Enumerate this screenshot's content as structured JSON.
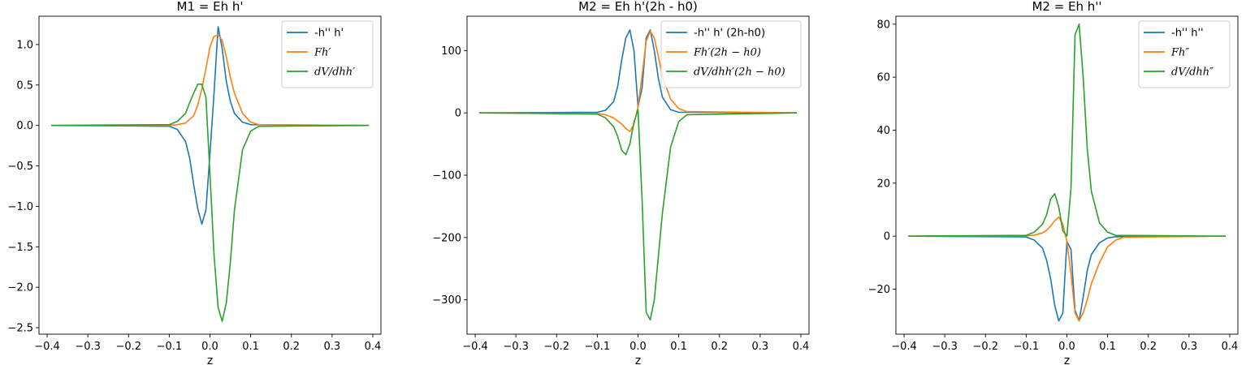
{
  "chart_data": [
    {
      "type": "line",
      "title": "M1 = Eh h'",
      "xlabel": "z",
      "ylabel": "",
      "xlim": [
        -0.42,
        0.42
      ],
      "ylim": [
        -2.58,
        1.35
      ],
      "xticks": [
        "-0.4",
        "-0.3",
        "-0.2",
        "-0.1",
        "0.0",
        "0.1",
        "0.2",
        "0.3",
        "0.4"
      ],
      "yticks": [
        "-2.5",
        "-2.0",
        "-1.5",
        "-1.0",
        "-0.5",
        "0.0",
        "0.5",
        "1.0"
      ],
      "legend_position": "upper-right",
      "series": [
        {
          "name": "-h'' h'",
          "italic": false,
          "color": "#1f77b4",
          "x": [
            -0.39,
            -0.1,
            -0.08,
            -0.06,
            -0.05,
            -0.04,
            -0.03,
            -0.02,
            -0.01,
            0.0,
            0.01,
            0.02,
            0.03,
            0.04,
            0.05,
            0.06,
            0.08,
            0.1,
            0.39
          ],
          "y": [
            0,
            -0.01,
            -0.05,
            -0.2,
            -0.4,
            -0.73,
            -1.03,
            -1.22,
            -1.05,
            -0.35,
            0.4,
            1.22,
            0.95,
            0.55,
            0.3,
            0.15,
            0.04,
            0.01,
            0
          ]
        },
        {
          "name": "Fh′",
          "italic": true,
          "color": "#ff7f0e",
          "x": [
            -0.39,
            -0.1,
            -0.08,
            -0.06,
            -0.04,
            -0.03,
            -0.02,
            -0.01,
            0.0,
            0.01,
            0.02,
            0.03,
            0.04,
            0.05,
            0.06,
            0.08,
            0.1,
            0.12,
            0.39
          ],
          "y": [
            0,
            0.0,
            0.01,
            0.03,
            0.12,
            0.25,
            0.45,
            0.7,
            0.97,
            1.1,
            1.12,
            1.05,
            0.85,
            0.6,
            0.4,
            0.15,
            0.04,
            0.01,
            0
          ]
        },
        {
          "name": "dV/dhh′",
          "italic": true,
          "color": "#2ca02c",
          "x": [
            -0.39,
            -0.1,
            -0.08,
            -0.06,
            -0.05,
            -0.04,
            -0.03,
            -0.02,
            -0.01,
            0.0,
            0.01,
            0.02,
            0.03,
            0.04,
            0.05,
            0.06,
            0.08,
            0.1,
            0.12,
            0.39
          ],
          "y": [
            0,
            0.01,
            0.05,
            0.15,
            0.28,
            0.4,
            0.51,
            0.51,
            0.35,
            -0.6,
            -1.6,
            -2.25,
            -2.42,
            -2.2,
            -1.7,
            -1.05,
            -0.3,
            -0.07,
            -0.01,
            0
          ]
        }
      ]
    },
    {
      "type": "line",
      "title": "M2 = Eh h'(2h - h0)",
      "xlabel": "z",
      "ylabel": "",
      "xlim": [
        -0.42,
        0.42
      ],
      "ylim": [
        -355,
        155
      ],
      "xticks": [
        "-0.4",
        "-0.3",
        "-0.2",
        "-0.1",
        "0.0",
        "0.1",
        "0.2",
        "0.3",
        "0.4"
      ],
      "yticks": [
        "-300",
        "-200",
        "-100",
        "0",
        "100"
      ],
      "legend_position": "upper-right",
      "series": [
        {
          "name": "-h'' h' (2h-h0)",
          "italic": false,
          "color": "#1f77b4",
          "x": [
            -0.39,
            -0.1,
            -0.08,
            -0.06,
            -0.05,
            -0.04,
            -0.03,
            -0.02,
            -0.01,
            0.0,
            0.01,
            0.02,
            0.03,
            0.04,
            0.05,
            0.06,
            0.08,
            0.1,
            0.39
          ],
          "y": [
            0,
            1,
            4,
            18,
            42,
            85,
            120,
            133,
            100,
            10,
            40,
            120,
            133,
            100,
            55,
            25,
            5,
            1,
            0
          ]
        },
        {
          "name": "Fh′(2h − h0)",
          "italic": true,
          "color": "#ff7f0e",
          "x": [
            -0.39,
            -0.1,
            -0.08,
            -0.06,
            -0.05,
            -0.04,
            -0.03,
            -0.02,
            -0.01,
            0.0,
            0.01,
            0.02,
            0.03,
            0.04,
            0.05,
            0.06,
            0.08,
            0.1,
            0.12,
            0.39
          ],
          "y": [
            0,
            -1,
            -3,
            -8,
            -13,
            -18,
            -25,
            -30,
            -18,
            10,
            60,
            115,
            131,
            120,
            90,
            58,
            22,
            7,
            2,
            0
          ]
        },
        {
          "name": "dV/dhh′(2h − h0)",
          "italic": true,
          "color": "#2ca02c",
          "x": [
            -0.39,
            -0.1,
            -0.08,
            -0.06,
            -0.05,
            -0.04,
            -0.03,
            -0.02,
            -0.01,
            0.0,
            0.01,
            0.02,
            0.03,
            0.04,
            0.05,
            0.06,
            0.08,
            0.1,
            0.12,
            0.39
          ],
          "y": [
            0,
            -2,
            -8,
            -22,
            -38,
            -60,
            -67,
            -50,
            -15,
            5,
            -140,
            -320,
            -332,
            -300,
            -230,
            -160,
            -55,
            -14,
            -3,
            0
          ]
        }
      ]
    },
    {
      "type": "line",
      "title": "M2 = Eh h''",
      "xlabel": "z",
      "ylabel": "",
      "xlim": [
        -0.42,
        0.42
      ],
      "ylim": [
        -37,
        83
      ],
      "xticks": [
        "-0.4",
        "-0.3",
        "-0.2",
        "-0.1",
        "0.0",
        "0.1",
        "0.2",
        "0.3",
        "0.4"
      ],
      "yticks": [
        "-20",
        "0",
        "20",
        "40",
        "60",
        "80"
      ],
      "legend_position": "upper-right",
      "series": [
        {
          "name": "-h'' h''",
          "italic": false,
          "color": "#1f77b4",
          "x": [
            -0.39,
            -0.1,
            -0.08,
            -0.06,
            -0.05,
            -0.04,
            -0.03,
            -0.02,
            -0.01,
            0.0,
            0.01,
            0.02,
            0.03,
            0.04,
            0.05,
            0.06,
            0.08,
            0.1,
            0.12,
            0.39
          ],
          "y": [
            0,
            -0.3,
            -1.5,
            -4.5,
            -9,
            -16,
            -26,
            -32,
            -29,
            -2,
            -5,
            -28,
            -32,
            -23,
            -13,
            -7,
            -2.5,
            -0.7,
            -0.2,
            0
          ]
        },
        {
          "name": "Fh″",
          "italic": true,
          "color": "#ff7f0e",
          "x": [
            -0.39,
            -0.1,
            -0.08,
            -0.06,
            -0.05,
            -0.04,
            -0.03,
            -0.02,
            -0.01,
            0.0,
            0.01,
            0.02,
            0.03,
            0.04,
            0.05,
            0.06,
            0.08,
            0.1,
            0.12,
            0.14,
            0.39
          ],
          "y": [
            0,
            0.1,
            0.4,
            1.2,
            2.2,
            3.8,
            5.8,
            7.2,
            4.5,
            -2,
            -14,
            -29,
            -32,
            -29,
            -24,
            -18,
            -10,
            -4,
            -1.5,
            -0.4,
            0
          ]
        },
        {
          "name": "dV/dhh″",
          "italic": true,
          "color": "#2ca02c",
          "x": [
            -0.39,
            -0.1,
            -0.08,
            -0.06,
            -0.05,
            -0.04,
            -0.03,
            -0.02,
            -0.01,
            0.0,
            0.01,
            0.02,
            0.03,
            0.04,
            0.05,
            0.06,
            0.08,
            0.1,
            0.12,
            0.39
          ],
          "y": [
            0,
            0.3,
            1.5,
            4.5,
            8,
            14,
            16,
            11,
            2,
            0,
            18,
            76,
            80,
            60,
            33,
            17,
            5,
            1.5,
            0.3,
            0
          ]
        }
      ]
    }
  ]
}
